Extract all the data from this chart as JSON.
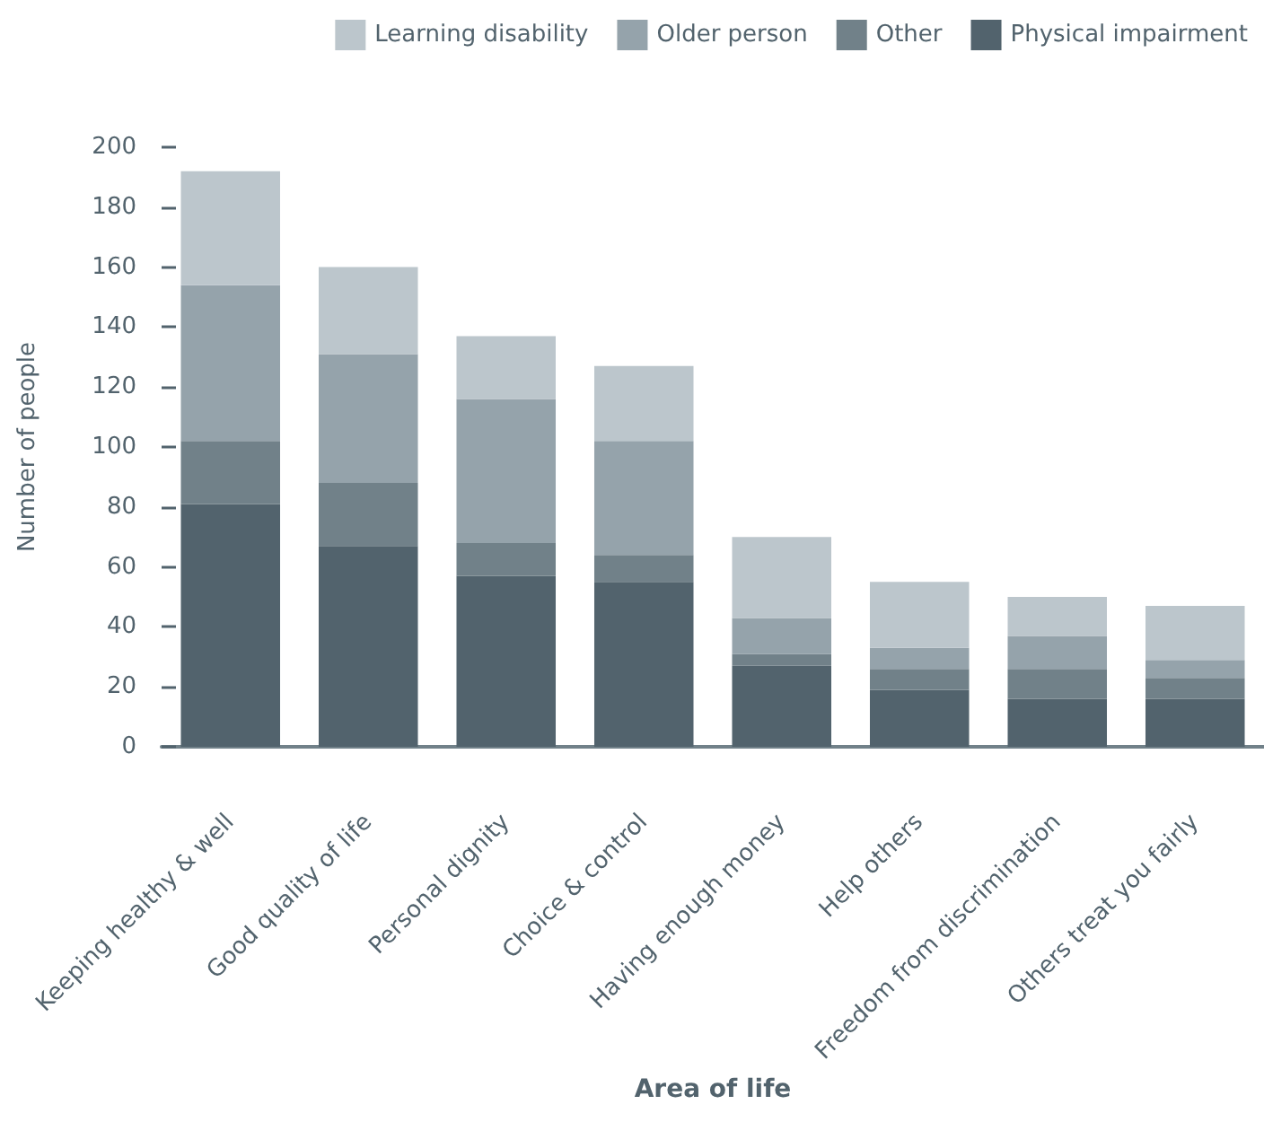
{
  "chart_data": {
    "type": "bar",
    "stacked": true,
    "xlabel": "Area of life",
    "ylabel": "Number of people",
    "categories": [
      "Keeping healthy & well",
      "Good quality of life",
      "Personal dignity",
      "Choice & control",
      "Having enough money",
      "Help others",
      "Freedom from discrimination",
      "Others treat you fairly"
    ],
    "series": [
      {
        "name": "Physical impairment",
        "color": "#52636d",
        "values": [
          81,
          67,
          57,
          55,
          27,
          19,
          16,
          16
        ]
      },
      {
        "name": "Other",
        "color": "#718189",
        "values": [
          21,
          21,
          11,
          9,
          4,
          7,
          10,
          7
        ]
      },
      {
        "name": "Older person",
        "color": "#95a3ab",
        "values": [
          52,
          43,
          48,
          38,
          12,
          7,
          11,
          6
        ]
      },
      {
        "name": "Learning disability",
        "color": "#bcc6cc",
        "values": [
          38,
          29,
          21,
          25,
          27,
          22,
          13,
          18
        ]
      }
    ],
    "ylim": [
      0,
      200
    ],
    "yticks": [
      0,
      20,
      40,
      60,
      80,
      100,
      120,
      140,
      160,
      180,
      200
    ],
    "grid": false,
    "legend": "top right"
  }
}
